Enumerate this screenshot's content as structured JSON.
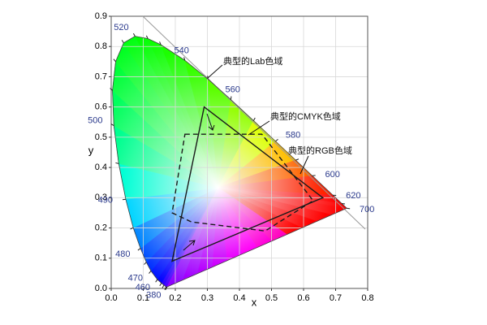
{
  "chart_data": {
    "type": "chromaticity",
    "xlabel": "x",
    "ylabel": "y",
    "xlim": [
      0,
      0.8
    ],
    "ylim": [
      0,
      0.9
    ],
    "xticks": [
      {
        "value": 0,
        "label": "0.0"
      },
      0.1,
      0.2,
      0.3,
      0.4,
      0.5,
      0.6,
      0.7,
      0.8
    ],
    "yticks": [
      {
        "value": 0,
        "label": "0.0"
      },
      0.1,
      0.2,
      0.3,
      0.4,
      0.5,
      0.6,
      0.7,
      0.8,
      0.9
    ],
    "grid": true,
    "locus": {
      "name": "典型的Lab色域",
      "wavelengths": [
        380,
        null,
        null,
        null,
        460,
        470,
        null,
        480,
        null,
        490,
        null,
        500,
        null,
        null,
        null,
        520,
        null,
        null,
        540,
        null,
        560,
        null,
        580,
        null,
        600,
        620,
        null,
        700
      ],
      "x": [
        0.1741,
        0.1714,
        0.1644,
        0.1566,
        0.144,
        0.1241,
        0.1096,
        0.0913,
        0.0687,
        0.0454,
        0.0235,
        0.0082,
        0.0039,
        0.0139,
        0.0389,
        0.0743,
        0.1142,
        0.1547,
        0.2296,
        0.3016,
        0.3731,
        0.4441,
        0.5125,
        0.5752,
        0.627,
        0.6915,
        0.719,
        0.7347
      ],
      "y": [
        0.005,
        0.0051,
        0.0109,
        0.0177,
        0.0297,
        0.0578,
        0.0868,
        0.1327,
        0.2007,
        0.295,
        0.4127,
        0.5384,
        0.6548,
        0.7502,
        0.812,
        0.8338,
        0.8262,
        0.8059,
        0.7543,
        0.6923,
        0.6245,
        0.5547,
        0.4866,
        0.4242,
        0.3725,
        0.3083,
        0.2809,
        0.2653
      ]
    },
    "series": [
      {
        "name": "典型的CMYK色域",
        "style": "dashed",
        "color": "#1a1a1a",
        "x": [
          0.23,
          0.47,
          0.63,
          0.48,
          0.25,
          0.19
        ],
        "y": [
          0.51,
          0.51,
          0.29,
          0.19,
          0.22,
          0.25
        ]
      },
      {
        "name": "典型的RGB色域",
        "style": "solid",
        "color": "#1a1a1a",
        "x": [
          0.29,
          0.66,
          0.19
        ],
        "y": [
          0.6,
          0.3,
          0.09
        ]
      }
    ]
  }
}
